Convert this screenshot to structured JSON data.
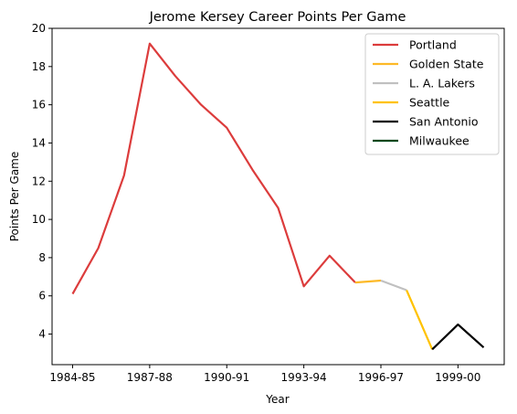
{
  "chart_data": {
    "type": "line",
    "title": "Jerome Kersey Career Points Per Game",
    "xlabel": "Year",
    "ylabel": "Points Per Game",
    "ylim": [
      2.4,
      20
    ],
    "yticks": [
      4,
      6,
      8,
      10,
      12,
      14,
      16,
      18,
      20
    ],
    "xticks": [
      "1984-85",
      "1987-88",
      "1990-91",
      "1993-94",
      "1996-97",
      "1999-00"
    ],
    "x": [
      "1984-85",
      "1985-86",
      "1986-87",
      "1987-88",
      "1988-89",
      "1989-90",
      "1990-91",
      "1991-92",
      "1992-93",
      "1993-94",
      "1994-95",
      "1995-96",
      "1996-97",
      "1997-98",
      "1998-99",
      "1999-00",
      "2000-01"
    ],
    "grid": false,
    "legend_position": "top-right",
    "series": [
      {
        "name": "Portland",
        "color": "#dc3c3c",
        "points": [
          [
            "1984-85",
            6.1
          ],
          [
            "1985-86",
            8.5
          ],
          [
            "1986-87",
            12.3
          ],
          [
            "1987-88",
            19.2
          ],
          [
            "1988-89",
            17.5
          ],
          [
            "1989-90",
            16.0
          ],
          [
            "1990-91",
            14.8
          ],
          [
            "1991-92",
            12.6
          ],
          [
            "1992-93",
            10.6
          ],
          [
            "1993-94",
            6.5
          ],
          [
            "1994-95",
            8.1
          ],
          [
            "1995-96",
            6.7
          ]
        ]
      },
      {
        "name": "Golden State",
        "color": "#fdb927",
        "points": [
          [
            "1995-96",
            6.7
          ],
          [
            "1996-97",
            6.8
          ]
        ]
      },
      {
        "name": "L. A. Lakers",
        "color": "#c0c0c0",
        "points": [
          [
            "1996-97",
            6.8
          ],
          [
            "1997-98",
            6.3
          ]
        ]
      },
      {
        "name": "Seattle",
        "color": "#ffc200",
        "points": [
          [
            "1997-98",
            6.3
          ],
          [
            "1998-99",
            3.2
          ]
        ]
      },
      {
        "name": "San Antonio",
        "color": "#000000",
        "points": [
          [
            "1998-99",
            3.2
          ],
          [
            "1999-00",
            4.5
          ],
          [
            "2000-01",
            3.3
          ]
        ]
      },
      {
        "name": "Milwaukee",
        "color": "#00471b",
        "points": []
      }
    ]
  }
}
